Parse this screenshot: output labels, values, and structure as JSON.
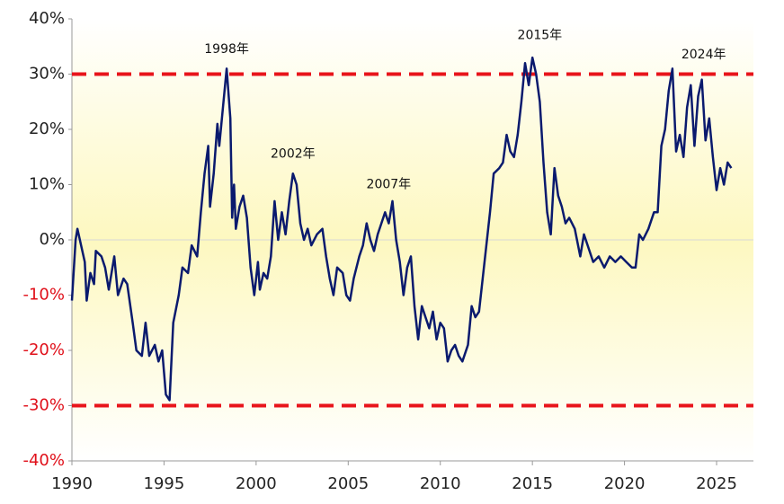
{
  "chart_data": {
    "type": "line",
    "x": [
      1990.0,
      1990.2,
      1990.3,
      1990.5,
      1990.7,
      1990.8,
      1991.0,
      1991.2,
      1991.3,
      1991.6,
      1991.8,
      1992.0,
      1992.3,
      1992.5,
      1992.8,
      1993.0,
      1993.3,
      1993.5,
      1993.8,
      1994.0,
      1994.2,
      1994.5,
      1994.7,
      1994.9,
      1995.1,
      1995.3,
      1995.5,
      1995.8,
      1996.0,
      1996.3,
      1996.5,
      1996.8,
      1997.0,
      1997.2,
      1997.4,
      1997.5,
      1997.7,
      1997.9,
      1998.0,
      1998.2,
      1998.4,
      1998.6,
      1998.7,
      1998.8,
      1998.9,
      1999.1,
      1999.3,
      1999.5,
      1999.7,
      1999.9,
      2000.1,
      2000.2,
      2000.4,
      2000.6,
      2000.8,
      2001.0,
      2001.2,
      2001.4,
      2001.6,
      2001.8,
      2002.0,
      2002.2,
      2002.4,
      2002.6,
      2002.8,
      2003.0,
      2003.3,
      2003.6,
      2003.8,
      2004.0,
      2004.2,
      2004.4,
      2004.7,
      2004.9,
      2005.1,
      2005.3,
      2005.6,
      2005.8,
      2006.0,
      2006.2,
      2006.4,
      2006.6,
      2006.8,
      2007.0,
      2007.2,
      2007.4,
      2007.6,
      2007.8,
      2008.0,
      2008.2,
      2008.4,
      2008.6,
      2008.8,
      2009.0,
      2009.2,
      2009.4,
      2009.6,
      2009.8,
      2010.0,
      2010.2,
      2010.4,
      2010.6,
      2010.8,
      2011.0,
      2011.2,
      2011.5,
      2011.7,
      2011.9,
      2012.1,
      2012.4,
      2012.7,
      2012.9,
      2013.2,
      2013.4,
      2013.6,
      2013.8,
      2014.0,
      2014.2,
      2014.4,
      2014.6,
      2014.8,
      2015.0,
      2015.2,
      2015.4,
      2015.6,
      2015.8,
      2016.0,
      2016.2,
      2016.4,
      2016.6,
      2016.8,
      2017.0,
      2017.3,
      2017.6,
      2017.8,
      2018.0,
      2018.3,
      2018.6,
      2018.9,
      2019.2,
      2019.5,
      2019.8,
      2020.1,
      2020.4,
      2020.6,
      2020.8,
      2021.0,
      2021.3,
      2021.6,
      2021.8,
      2022.0,
      2022.2,
      2022.4,
      2022.6,
      2022.8,
      2023.0,
      2023.2,
      2023.4,
      2023.6,
      2023.8,
      2024.0,
      2024.2,
      2024.4,
      2024.6,
      2024.8,
      2025.0,
      2025.2,
      2025.4,
      2025.6,
      2025.8
    ],
    "series": [
      {
        "color": "#0a1a6e",
        "values": [
          -11,
          0,
          2,
          -1,
          -4,
          -11,
          -6,
          -8,
          -2,
          -3,
          -5,
          -9,
          -3,
          -10,
          -7,
          -8,
          -15,
          -20,
          -21,
          -15,
          -21,
          -19,
          -22,
          -20,
          -28,
          -29,
          -15,
          -10,
          -5,
          -6,
          -1,
          -3,
          5,
          12,
          17,
          6,
          12,
          21,
          17,
          24,
          31,
          22,
          4,
          10,
          2,
          6,
          8,
          4,
          -5,
          -10,
          -4,
          -9,
          -6,
          -7,
          -3,
          7,
          0,
          5,
          1,
          7,
          12,
          10,
          3,
          0,
          2,
          -1,
          1,
          2,
          -3,
          -7,
          -10,
          -5,
          -6,
          -10,
          -11,
          -7,
          -3,
          -1,
          3,
          0,
          -2,
          1,
          3,
          5,
          3,
          7,
          0,
          -4,
          -10,
          -5,
          -3,
          -12,
          -18,
          -12,
          -14,
          -16,
          -13,
          -18,
          -15,
          -16,
          -22,
          -20,
          -19,
          -21,
          -22,
          -19,
          -12,
          -14,
          -13,
          -4,
          5,
          12,
          13,
          14,
          19,
          16,
          15,
          19,
          25,
          32,
          28,
          33,
          30,
          25,
          14,
          5,
          1,
          13,
          8,
          6,
          3,
          4,
          2,
          -3,
          1,
          -1,
          -4,
          -3,
          -5,
          -3,
          -4,
          -3,
          -4,
          -5,
          -5,
          1,
          0,
          2,
          5,
          5,
          17,
          20,
          27,
          31,
          16,
          19,
          15,
          24,
          28,
          17,
          26,
          29,
          18,
          22,
          15,
          9,
          13,
          10,
          14,
          13
        ]
      }
    ],
    "xlim": [
      1990,
      2027
    ],
    "ylim": [
      -40,
      40
    ],
    "xticks": [
      1990,
      1995,
      2000,
      2005,
      2010,
      2015,
      2020,
      2025
    ],
    "yticks": [
      {
        "value": -40,
        "label": "-40%"
      },
      {
        "value": -30,
        "label": "-30%"
      },
      {
        "value": -20,
        "label": "-20%"
      },
      {
        "value": -10,
        "label": "-10%"
      },
      {
        "value": 0,
        "label": "0%"
      },
      {
        "value": 10,
        "label": "10%"
      },
      {
        "value": 20,
        "label": "20%"
      },
      {
        "value": 30,
        "label": "30%"
      },
      {
        "value": 40,
        "label": "40%"
      }
    ],
    "negative_tick_color": "#e0101a",
    "reference_lines": [
      {
        "value": 30,
        "color": "#e8141b"
      },
      {
        "value": -30,
        "color": "#e8141b"
      }
    ],
    "annotations": [
      {
        "text": "1998年",
        "x": 1998.4,
        "y": 34.5
      },
      {
        "text": "2002年",
        "x": 2002.0,
        "y": 15.5
      },
      {
        "text": "2007年",
        "x": 2007.2,
        "y": 10
      },
      {
        "text": "2015年",
        "x": 2015.4,
        "y": 37
      },
      {
        "text": "2024年",
        "x": 2024.3,
        "y": 33.5
      }
    ]
  }
}
